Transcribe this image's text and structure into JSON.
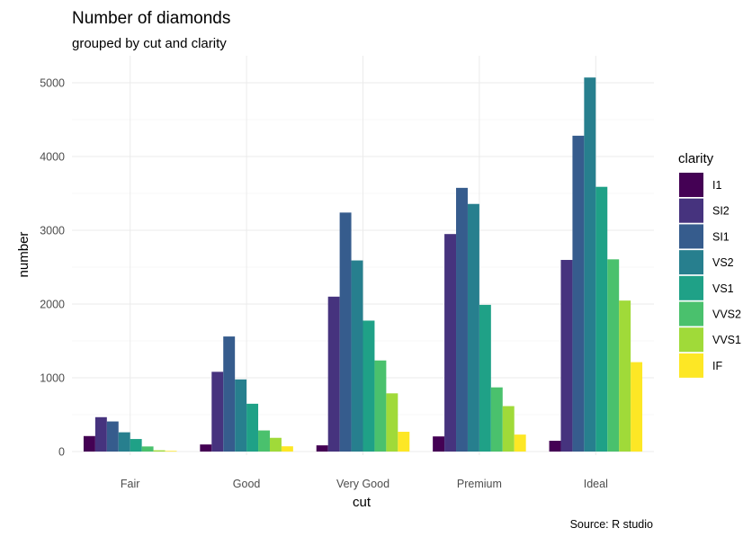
{
  "chart_data": {
    "type": "bar",
    "title": "Number of diamonds",
    "subtitle": "grouped by cut and clarity",
    "xlabel": "cut",
    "ylabel": "number",
    "caption": "Source: R studio",
    "categories": [
      "Fair",
      "Good",
      "Very Good",
      "Premium",
      "Ideal"
    ],
    "ylim": [
      0,
      5300
    ],
    "yticks": [
      0,
      1000,
      2000,
      3000,
      4000,
      5000
    ],
    "legend_title": "clarity",
    "legend_position": "right",
    "series": [
      {
        "name": "I1",
        "color": "#440154",
        "values": [
          210,
          96,
          84,
          205,
          146
        ]
      },
      {
        "name": "SI2",
        "color": "#46337E",
        "values": [
          466,
          1081,
          2100,
          2949,
          2598
        ]
      },
      {
        "name": "SI1",
        "color": "#365C8D",
        "values": [
          408,
          1560,
          3240,
          3575,
          4282
        ]
      },
      {
        "name": "VS2",
        "color": "#277F8E",
        "values": [
          261,
          978,
          2591,
          3357,
          5071
        ]
      },
      {
        "name": "VS1",
        "color": "#1FA187",
        "values": [
          170,
          648,
          1775,
          1989,
          3589
        ]
      },
      {
        "name": "VVS2",
        "color": "#4AC16D",
        "values": [
          69,
          286,
          1235,
          870,
          2606
        ]
      },
      {
        "name": "VVS1",
        "color": "#A0DA39",
        "values": [
          17,
          186,
          789,
          616,
          2047
        ]
      },
      {
        "name": "IF",
        "color": "#FDE725",
        "values": [
          9,
          71,
          268,
          230,
          1212
        ]
      }
    ]
  }
}
